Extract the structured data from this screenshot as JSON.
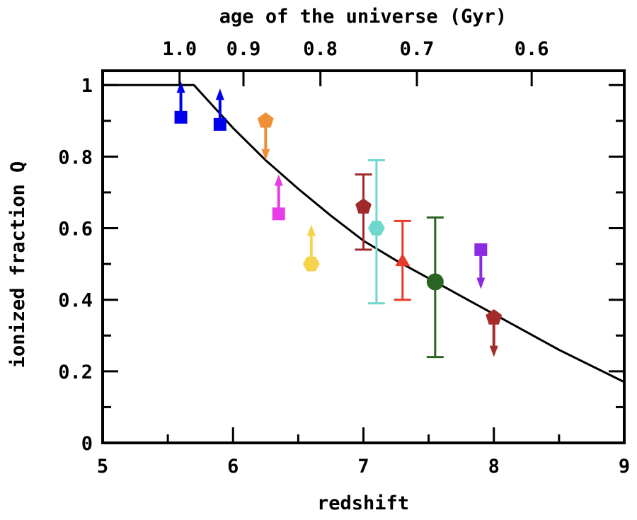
{
  "chart_data": {
    "type": "scatter",
    "xlabel": "redshift",
    "ylabel": "ionized fraction Q",
    "top_xlabel": "age of the universe (Gyr)",
    "xlim": [
      5,
      9
    ],
    "ylim": [
      0,
      1.04
    ],
    "x_ticks": [
      5,
      6,
      7,
      8,
      9
    ],
    "y_ticks": [
      0,
      0.2,
      0.4,
      0.6,
      0.8,
      1
    ],
    "y_tick_labels": [
      "0",
      "0.2",
      "0.4",
      "0.6",
      "0.8",
      "1"
    ],
    "top_ticks": [
      {
        "label": "1.0",
        "z": 5.59
      },
      {
        "label": "0.9",
        "z": 6.08
      },
      {
        "label": "0.8",
        "z": 6.67
      },
      {
        "label": "0.7",
        "z": 7.41
      },
      {
        "label": "0.6",
        "z": 8.29
      }
    ],
    "grid": false,
    "model_curve": {
      "color": "#000000",
      "x": [
        5,
        5.7,
        6.0,
        6.25,
        6.5,
        6.75,
        7.0,
        7.25,
        7.5,
        7.75,
        8.0,
        8.25,
        8.5,
        8.75,
        9.0
      ],
      "y": [
        1,
        1,
        0.88,
        0.79,
        0.71,
        0.635,
        0.565,
        0.51,
        0.46,
        0.41,
        0.36,
        0.31,
        0.26,
        0.215,
        0.17
      ]
    },
    "points": [
      {
        "x": 5.6,
        "y": 0.91,
        "marker": "square",
        "color": "#0000ee",
        "limit": "lower",
        "arrow_to": 1.01
      },
      {
        "x": 5.9,
        "y": 0.89,
        "marker": "square",
        "color": "#0000ee",
        "limit": "lower",
        "arrow_to": 0.99
      },
      {
        "x": 6.25,
        "y": 0.9,
        "marker": "pentagon",
        "color": "#ef8f38",
        "limit": "upper",
        "arrow_to": 0.79
      },
      {
        "x": 6.35,
        "y": 0.64,
        "marker": "square",
        "color": "#e83ce8",
        "limit": "lower",
        "arrow_to": 0.75
      },
      {
        "x": 6.6,
        "y": 0.5,
        "marker": "hexagon",
        "color": "#f5d34a",
        "limit": "lower",
        "arrow_to": 0.61
      },
      {
        "x": 7.0,
        "y": 0.66,
        "marker": "pentagon",
        "color": "#a02a2a",
        "err": [
          0.54,
          0.75
        ]
      },
      {
        "x": 7.1,
        "y": 0.6,
        "marker": "hexagon",
        "color": "#6fd8cc",
        "err": [
          0.39,
          0.79
        ]
      },
      {
        "x": 7.3,
        "y": 0.51,
        "marker": "triangle",
        "color": "#e83a2a",
        "err": [
          0.4,
          0.62
        ]
      },
      {
        "x": 7.55,
        "y": 0.45,
        "marker": "circle",
        "color": "#2a6422",
        "err": [
          0.24,
          0.63
        ]
      },
      {
        "x": 7.9,
        "y": 0.54,
        "marker": "square",
        "color": "#8a2be2",
        "limit": "upper",
        "arrow_to": 0.43
      },
      {
        "x": 8.0,
        "y": 0.35,
        "marker": "pentagon",
        "color": "#a52a2a",
        "limit": "upper",
        "arrow_to": 0.24
      }
    ]
  }
}
